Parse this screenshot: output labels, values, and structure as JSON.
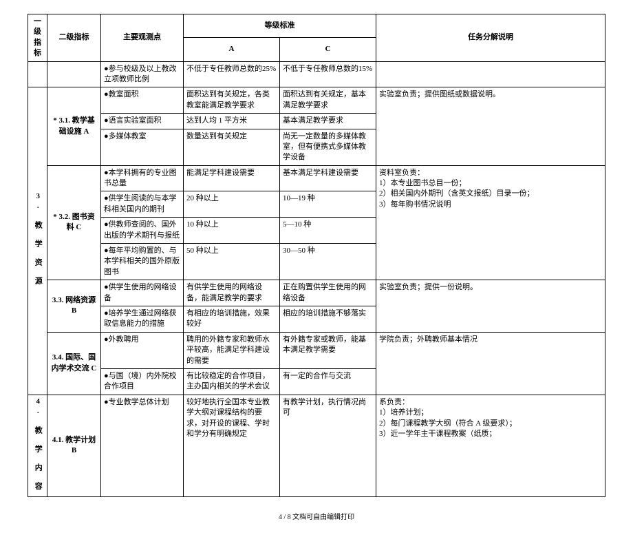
{
  "headers": {
    "l1": "一级指标",
    "l2": "二级指标",
    "obs": "主要观测点",
    "grade": "等级标准",
    "a": "A",
    "c": "C",
    "task": "任务分解说明"
  },
  "r0": {
    "obs": "●参与校级及以上教改立项教师比例",
    "a": "不低于专任教师总数的25%",
    "c": "不低于专任教师总数的15%"
  },
  "g3": {
    "l1": "3. 教 学 资 源",
    "s31": {
      "l2": "* 3.1. 教学基础设施 A",
      "r1": {
        "obs": "●教室面积",
        "a": "面积达到有关规定，各类教室能满足教学要求",
        "c": "面积达到有关规定，基本满足教学要求"
      },
      "r2": {
        "obs": "●语言实验室面积",
        "a": "达到人均 1 平方米",
        "c": "基本满足教学要求"
      },
      "r3": {
        "obs": "●多媒体教室",
        "a": "数量达到有关规定",
        "c": "尚无一定数量的多媒体教室，但有便携式多媒体教学设备"
      },
      "task": "实验室负责；提供图纸或数据说明。"
    },
    "s32": {
      "l2": "* 3.2. 图书资料 C",
      "r1": {
        "obs": "●本学科拥有的专业图书总量",
        "a": "能满足学科建设需要",
        "c": "基本满足学科建设需要"
      },
      "r2": {
        "obs": "●供学生阅读的与本学科相关国内的期刊",
        "a": "20 种以上",
        "c": "10—19 种"
      },
      "r3": {
        "obs": "●供教师查阅的、国外出版的学术期刊与报纸",
        "a": "10 种以上",
        "c": "5—10 种"
      },
      "r4": {
        "obs": "●每年平均购置的、与本学科相关的国外原版图书",
        "a": "50 种以上",
        "c": "30—50 种"
      },
      "task": "资料室负责：\n1）本专业图书总目一份；\n2）相关国内外期刊（含英文报纸）目录一份；\n3）每年购书情况说明"
    },
    "s33": {
      "l2": "3.3. 网络资源 B",
      "r1": {
        "obs": "●供学生使用的网络设备",
        "a": "有供学生使用的网络设备，能满足教学的要求",
        "c": "正在购置供学生使用的网络设备"
      },
      "r2": {
        "obs": "●培养学生通过网络获取信息能力的措施",
        "a": "有相应的培训措施，效果较好",
        "c": "相应的培训措施不够落实"
      },
      "task": "实验室负责；提供一份说明。"
    },
    "s34": {
      "l2": "3.4. 国际、国内学术交流 C",
      "r1": {
        "obs": "●外教聘用",
        "a": "聘用的外籍专家和教师水平较高，能满足学科建设的需要",
        "c": "有外籍专家或教师，能基本满足教学需要"
      },
      "r2": {
        "obs": "●与国（境）内外院校合作项目",
        "a": "有比较稳定的合作项目，主办国内相关的学术会议",
        "c": "有一定的合作与交流"
      },
      "task": "学院负责；外聘教师基本情况"
    }
  },
  "g4": {
    "l1": "4. 教 学 内 容",
    "s41": {
      "l2": "4.1. 教学计划 B",
      "r1": {
        "obs": "●专业教学总体计划",
        "a": "较好地执行全国本专业教学大纲对课程结构的要求，对开设的课程、学时和学分有明确规定",
        "c": "有教学计划，执行情况尚可"
      },
      "task": "系负责：\n1）培养计划；\n2）每门课程教学大纲（符合 A 级要求）；\n3）近一学年主干课程教案（纸质；"
    }
  },
  "footer": "4 / 8 文档可自由编辑打印"
}
